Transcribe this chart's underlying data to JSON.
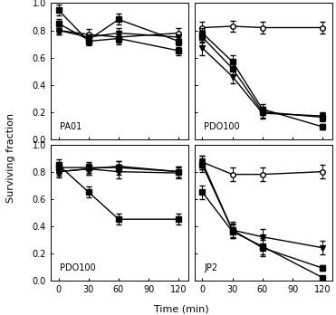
{
  "time": [
    0,
    30,
    60,
    120
  ],
  "panels": [
    {
      "label": "PA01",
      "row": 0,
      "col": 0,
      "series": [
        {
          "y": [
            0.95,
            0.72,
            0.74,
            0.65
          ],
          "yerr": [
            0.04,
            0.03,
            0.03,
            0.03
          ],
          "marker": "s",
          "fillstyle": "full"
        },
        {
          "y": [
            0.85,
            0.73,
            0.88,
            0.72
          ],
          "yerr": [
            0.03,
            0.03,
            0.04,
            0.03
          ],
          "marker": "s",
          "fillstyle": "full"
        },
        {
          "y": [
            0.8,
            0.75,
            0.78,
            0.75
          ],
          "yerr": [
            0.03,
            0.03,
            0.04,
            0.03
          ],
          "marker": "v",
          "fillstyle": "full"
        },
        {
          "y": [
            0.8,
            0.77,
            0.75,
            0.78
          ],
          "yerr": [
            0.03,
            0.04,
            0.05,
            0.04
          ],
          "marker": "o",
          "fillstyle": "none"
        }
      ]
    },
    {
      "label": "PDO100",
      "row": 0,
      "col": 1,
      "series": [
        {
          "y": [
            0.78,
            0.57,
            0.22,
            0.09
          ],
          "yerr": [
            0.04,
            0.05,
            0.04,
            0.02
          ],
          "marker": "s",
          "fillstyle": "full"
        },
        {
          "y": [
            0.75,
            0.52,
            0.2,
            0.16
          ],
          "yerr": [
            0.04,
            0.05,
            0.04,
            0.03
          ],
          "marker": "s",
          "fillstyle": "full"
        },
        {
          "y": [
            0.67,
            0.46,
            0.19,
            0.17
          ],
          "yerr": [
            0.05,
            0.05,
            0.04,
            0.03
          ],
          "marker": "v",
          "fillstyle": "full"
        },
        {
          "y": [
            0.82,
            0.83,
            0.82,
            0.82
          ],
          "yerr": [
            0.04,
            0.04,
            0.04,
            0.04
          ],
          "marker": "o",
          "fillstyle": "none"
        }
      ]
    },
    {
      "label": "PDO100",
      "row": 1,
      "col": 0,
      "series": [
        {
          "y": [
            0.85,
            0.65,
            0.45,
            0.45
          ],
          "yerr": [
            0.04,
            0.04,
            0.04,
            0.04
          ],
          "marker": "s",
          "fillstyle": "full"
        },
        {
          "y": [
            0.83,
            0.83,
            0.83,
            0.8
          ],
          "yerr": [
            0.04,
            0.04,
            0.05,
            0.04
          ],
          "marker": "s",
          "fillstyle": "full"
        },
        {
          "y": [
            0.8,
            0.82,
            0.8,
            0.79
          ],
          "yerr": [
            0.04,
            0.04,
            0.05,
            0.04
          ],
          "marker": "v",
          "fillstyle": "full"
        },
        {
          "y": [
            0.8,
            0.82,
            0.84,
            0.8
          ],
          "yerr": [
            0.03,
            0.04,
            0.04,
            0.04
          ],
          "marker": "o",
          "fillstyle": "none"
        }
      ]
    },
    {
      "label": "JP2",
      "row": 1,
      "col": 1,
      "series": [
        {
          "y": [
            0.65,
            0.36,
            0.25,
            0.02
          ],
          "yerr": [
            0.05,
            0.05,
            0.06,
            0.01
          ],
          "marker": "s",
          "fillstyle": "full"
        },
        {
          "y": [
            0.85,
            0.37,
            0.24,
            0.09
          ],
          "yerr": [
            0.05,
            0.05,
            0.06,
            0.02
          ],
          "marker": "s",
          "fillstyle": "full"
        },
        {
          "y": [
            0.87,
            0.37,
            0.32,
            0.24
          ],
          "yerr": [
            0.05,
            0.06,
            0.06,
            0.05
          ],
          "marker": "v",
          "fillstyle": "full"
        },
        {
          "y": [
            0.87,
            0.78,
            0.78,
            0.8
          ],
          "yerr": [
            0.05,
            0.05,
            0.05,
            0.05
          ],
          "marker": "o",
          "fillstyle": "none"
        }
      ]
    }
  ],
  "xlabel": "Time (min)",
  "ylabel": "Surviving fraction",
  "xticks": [
    0,
    30,
    60,
    90,
    120
  ],
  "ylim": [
    0.0,
    1.0
  ],
  "yticks": [
    0.0,
    0.2,
    0.4,
    0.6,
    0.8,
    1.0
  ],
  "figsize": [
    3.71,
    3.48
  ],
  "dpi": 100
}
